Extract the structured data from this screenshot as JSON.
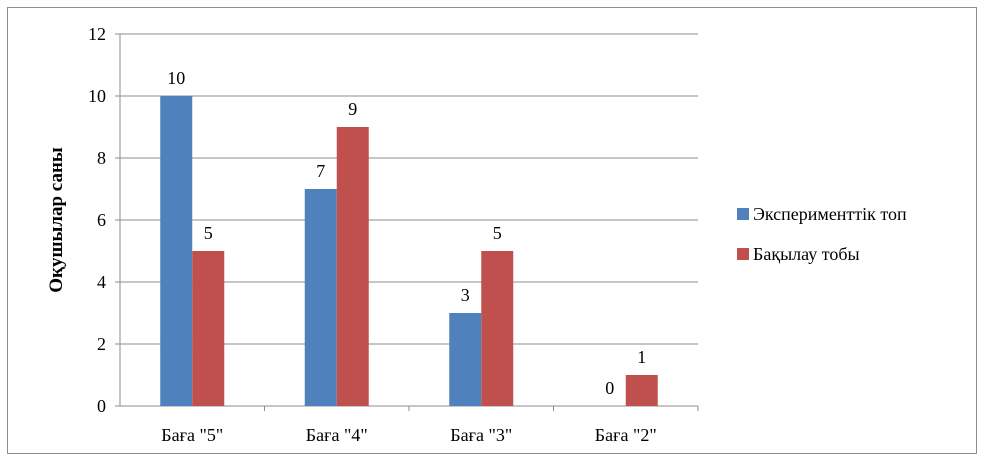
{
  "chart_data": {
    "type": "bar",
    "title": "",
    "xlabel": "",
    "ylabel": "Оқушылар саны",
    "categories": [
      "Баға \"5\"",
      "Баға \"4\"",
      "Баға \"3\"",
      "Баға \"2\""
    ],
    "series": [
      {
        "name": "Эксперименттік топ",
        "values": [
          10,
          7,
          3,
          0
        ],
        "color": "#4f81bd"
      },
      {
        "name": "Бақылау тобы",
        "values": [
          5,
          9,
          5,
          1
        ],
        "color": "#c0504d"
      }
    ],
    "ylim": [
      0,
      12
    ],
    "yticks": [
      0,
      2,
      4,
      6,
      8,
      10,
      12
    ],
    "grid": true,
    "legend_position": "right",
    "data_labels": true
  }
}
